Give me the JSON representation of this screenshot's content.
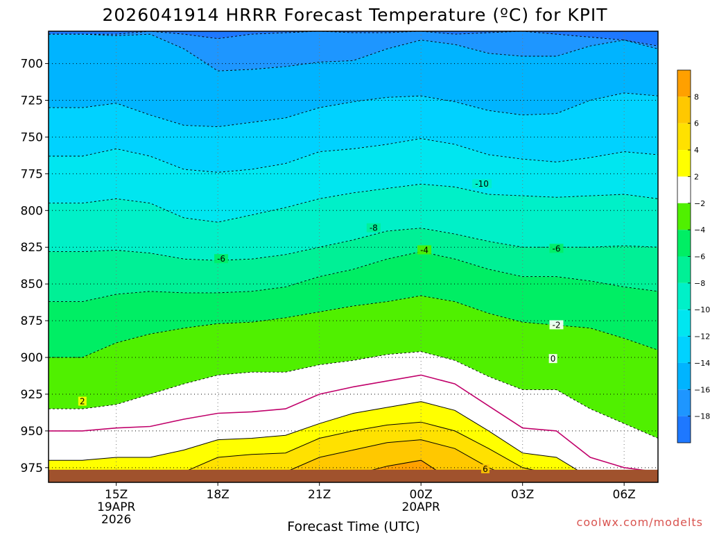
{
  "chart_data": {
    "type": "contour",
    "title": "2026041914 HRRR Forecast Temperature (ºC) for KPIT",
    "xlabel": "Forecast Time (UTC)",
    "credit": "coolwx.com/modelts",
    "x_range_hours": [
      13,
      31
    ],
    "y_range_hpa": [
      678,
      985
    ],
    "ground_hpa": 975,
    "y_ticks": [
      {
        "value": 700,
        "label": "700"
      },
      {
        "value": 725,
        "label": "725"
      },
      {
        "value": 750,
        "label": "750"
      },
      {
        "value": 775,
        "label": "775"
      },
      {
        "value": 800,
        "label": "800"
      },
      {
        "value": 825,
        "label": "825"
      },
      {
        "value": 850,
        "label": "850"
      },
      {
        "value": 875,
        "label": "875"
      },
      {
        "value": 900,
        "label": "900"
      },
      {
        "value": 925,
        "label": "925"
      },
      {
        "value": 950,
        "label": "950"
      },
      {
        "value": 975,
        "label": "975"
      }
    ],
    "x_ticks": [
      {
        "hour": 15,
        "lines": [
          "15Z",
          "19APR",
          "2026"
        ]
      },
      {
        "hour": 18,
        "lines": [
          "18Z"
        ]
      },
      {
        "hour": 21,
        "lines": [
          "21Z"
        ]
      },
      {
        "hour": 24,
        "lines": [
          "00Z",
          "20APR"
        ]
      },
      {
        "hour": 27,
        "lines": [
          "03Z"
        ]
      },
      {
        "hour": 30,
        "lines": [
          "06Z"
        ]
      }
    ],
    "hours": [
      13,
      14,
      15,
      16,
      17,
      18,
      19,
      20,
      21,
      22,
      23,
      24,
      25,
      26,
      27,
      28,
      29,
      30,
      31
    ],
    "color_scale": [
      {
        "from": -99,
        "to": -18,
        "color": "#1e78ff"
      },
      {
        "from": -18,
        "to": -16,
        "color": "#1e96ff"
      },
      {
        "from": -16,
        "to": -14,
        "color": "#00b4ff"
      },
      {
        "from": -14,
        "to": -12,
        "color": "#00d2ff"
      },
      {
        "from": -12,
        "to": -10,
        "color": "#00e6f0"
      },
      {
        "from": -10,
        "to": -8,
        "color": "#00f0c8"
      },
      {
        "from": -8,
        "to": -6,
        "color": "#00f096"
      },
      {
        "from": -6,
        "to": -4,
        "color": "#00ee64"
      },
      {
        "from": -4,
        "to": -2,
        "color": "#50f000"
      },
      {
        "from": -2,
        "to": 2,
        "color": "#ffffff"
      },
      {
        "from": 2,
        "to": 4,
        "color": "#ffff00"
      },
      {
        "from": 4,
        "to": 6,
        "color": "#ffe100"
      },
      {
        "from": 6,
        "to": 8,
        "color": "#ffc800"
      },
      {
        "from": 8,
        "to": 99,
        "color": "#ffa000"
      }
    ],
    "colorbar_labels": [
      "8",
      "6",
      "4",
      "2",
      "−2",
      "−4",
      "−6",
      "−8",
      "−10",
      "−12",
      "−14",
      "−16",
      "−18"
    ],
    "isotherms": [
      {
        "temp": -18,
        "style": "dashed",
        "p": [
          680,
          680,
          680,
          678,
          680,
          683,
          680,
          679,
          678,
          679,
          679,
          678,
          680,
          679,
          678,
          680,
          682,
          684,
          688
        ]
      },
      {
        "temp": -16,
        "style": "dashed",
        "p": [
          680,
          680,
          681,
          680,
          690,
          705,
          704,
          702,
          699,
          698,
          690,
          684,
          687,
          693,
          695,
          695,
          688,
          684,
          690
        ]
      },
      {
        "temp": -14,
        "style": "dashed",
        "p": [
          730,
          730,
          727,
          735,
          742,
          743,
          740,
          737,
          730,
          726,
          723,
          722,
          726,
          732,
          735,
          734,
          725,
          720,
          722
        ]
      },
      {
        "temp": -12,
        "style": "dashed",
        "p": [
          763,
          763,
          758,
          763,
          772,
          774,
          772,
          768,
          760,
          758,
          755,
          751,
          755,
          762,
          765,
          767,
          764,
          760,
          762
        ]
      },
      {
        "temp": -10,
        "style": "dashed",
        "p": [
          795,
          795,
          792,
          795,
          805,
          808,
          803,
          798,
          792,
          788,
          785,
          782,
          784,
          789,
          790,
          791,
          790,
          789,
          792
        ]
      },
      {
        "temp": -8,
        "style": "dashed",
        "p": [
          828,
          828,
          827,
          829,
          833,
          834,
          833,
          830,
          825,
          820,
          814,
          812,
          816,
          821,
          825,
          825,
          825,
          824,
          825
        ]
      },
      {
        "temp": -6,
        "style": "dashed",
        "p": [
          862,
          862,
          857,
          855,
          856,
          856,
          855,
          852,
          845,
          840,
          833,
          828,
          833,
          840,
          845,
          845,
          848,
          852,
          855
        ]
      },
      {
        "temp": -4,
        "style": "dashed",
        "p": [
          900,
          900,
          890,
          884,
          880,
          877,
          876,
          873,
          869,
          865,
          862,
          858,
          862,
          870,
          876,
          878,
          880,
          887,
          895
        ]
      },
      {
        "temp": -2,
        "style": "dashed",
        "p": [
          935,
          935,
          932,
          925,
          918,
          912,
          910,
          910,
          905,
          902,
          898,
          896,
          902,
          913,
          922,
          922,
          935,
          945,
          955
        ]
      },
      {
        "temp": 0,
        "style": "magenta",
        "p": [
          950,
          950,
          948,
          947,
          942,
          938,
          937,
          935,
          925,
          920,
          916,
          912,
          918,
          933,
          948,
          950,
          968,
          975,
          978
        ]
      },
      {
        "temp": 2,
        "style": "solid",
        "p": [
          970,
          970,
          968,
          968,
          963,
          956,
          955,
          953,
          945,
          938,
          934,
          930,
          936,
          950,
          965,
          968,
          982,
          985,
          985
        ]
      },
      {
        "temp": 4,
        "style": "solid",
        "p": [
          985,
          985,
          985,
          985,
          978,
          968,
          966,
          965,
          955,
          950,
          946,
          944,
          950,
          962,
          975,
          980,
          985,
          985,
          985
        ]
      },
      {
        "temp": 6,
        "style": "solid",
        "p": [
          985,
          985,
          985,
          985,
          985,
          982,
          980,
          978,
          968,
          963,
          958,
          956,
          962,
          975,
          985,
          985,
          985,
          985,
          985
        ]
      },
      {
        "temp": 8,
        "style": "solid",
        "p": [
          985,
          985,
          985,
          985,
          985,
          985,
          985,
          985,
          985,
          980,
          974,
          970,
          985,
          985,
          985,
          985,
          985,
          985,
          985
        ]
      }
    ],
    "contour_labels": [
      {
        "text": "-10",
        "hour": 25.8,
        "p": 782
      },
      {
        "text": "-8",
        "hour": 22.6,
        "p": 812
      },
      {
        "text": "-6",
        "hour": 18.1,
        "p": 833
      },
      {
        "text": "-4",
        "hour": 24.1,
        "p": 827
      },
      {
        "text": "-6",
        "hour": 28.0,
        "p": 826
      },
      {
        "text": "-2",
        "hour": 28.0,
        "p": 878
      },
      {
        "text": "0",
        "hour": 27.9,
        "p": 901
      },
      {
        "text": "2",
        "hour": 14.0,
        "p": 930
      },
      {
        "text": "6",
        "hour": 25.9,
        "p": 976
      }
    ]
  }
}
